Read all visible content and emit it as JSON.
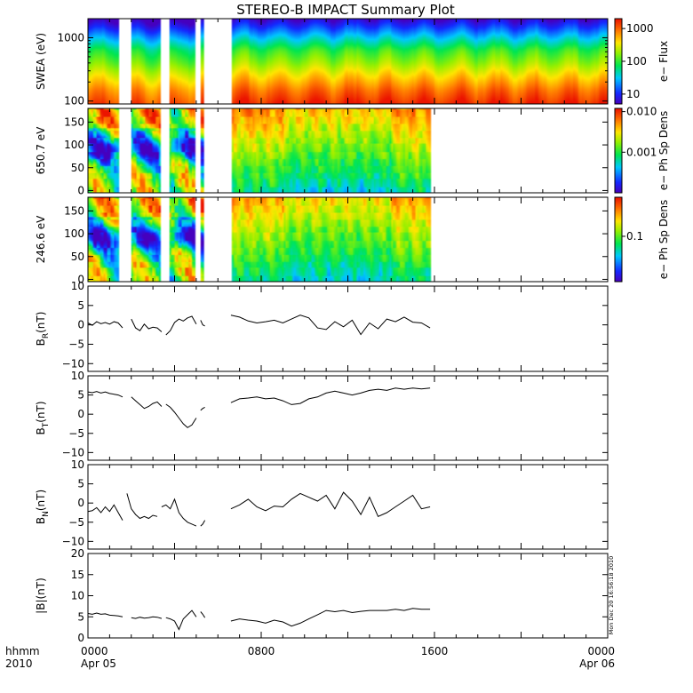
{
  "chart_data": {
    "type": "multi-panel time series with spectrograms",
    "title": "STEREO-B IMPACT Summary Plot",
    "stamp": "Mon Dec 20 16:56:18 2010",
    "time_axis": {
      "range_hours": [
        0,
        24
      ],
      "corner_labels": [
        "hhmm",
        "2010"
      ],
      "ticks": [
        {
          "hour": 0,
          "label": "0000",
          "sublabel": "Apr 05"
        },
        {
          "hour": 8,
          "label": "0800",
          "sublabel": ""
        },
        {
          "hour": 16,
          "label": "1600",
          "sublabel": ""
        },
        {
          "hour": 24,
          "label": "0000",
          "sublabel": "Apr 06"
        }
      ]
    },
    "coverage": {
      "swea_intervals": [
        [
          0,
          1.4
        ],
        [
          2.0,
          3.3
        ],
        [
          3.7,
          4.9
        ],
        [
          5.2,
          5.3
        ],
        [
          6.6,
          24
        ]
      ],
      "pad_intervals": [
        [
          0,
          1.4
        ],
        [
          2.0,
          3.3
        ],
        [
          3.7,
          4.9
        ],
        [
          5.2,
          5.3
        ],
        [
          6.6,
          15.8
        ]
      ],
      "mag_intervals": [
        [
          0,
          1.6
        ],
        [
          2.0,
          5.0
        ],
        [
          5.2,
          5.4
        ],
        [
          6.6,
          15.8
        ]
      ]
    },
    "panels": [
      {
        "id": "swea",
        "type": "heatmap",
        "ylabel": "SWEA (eV)",
        "yscale": "log",
        "ylim": [
          90,
          2000
        ],
        "yticks": [
          {
            "v": 100,
            "label": "100"
          },
          {
            "v": 1000,
            "label": "1000"
          }
        ],
        "colorbar": {
          "label": "e− Flux",
          "scale": "log",
          "range": [
            5,
            2000
          ],
          "ticks": [
            {
              "v": 10,
              "label": "10"
            },
            {
              "v": 100,
              "label": "100"
            },
            {
              "v": 1000,
              "label": "1000"
            }
          ]
        },
        "flux_profile": {
          "energy_eV": [
            90,
            150,
            250,
            400,
            650,
            1000,
            1500,
            2000
          ],
          "flux": [
            1800,
            1000,
            450,
            200,
            100,
            35,
            12,
            6
          ]
        }
      },
      {
        "id": "pad650",
        "type": "heatmap",
        "ylabel": "650.7 eV",
        "yscale": "linear",
        "ylim": [
          -5,
          180
        ],
        "yticks": [
          {
            "v": 0,
            "label": "0"
          },
          {
            "v": 50,
            "label": "50"
          },
          {
            "v": 100,
            "label": "100"
          },
          {
            "v": 150,
            "label": "150"
          }
        ],
        "colorbar": {
          "label": "e− Ph Sp Dens",
          "scale": "log",
          "range": [
            0.0001,
            0.012
          ],
          "ticks": [
            {
              "v": 0.001,
              "label": "0.001"
            },
            {
              "v": 0.01,
              "label": "0.010"
            }
          ]
        }
      },
      {
        "id": "pad246",
        "type": "heatmap",
        "ylabel": "246.6 eV",
        "yscale": "linear",
        "ylim": [
          -5,
          180
        ],
        "yticks": [
          {
            "v": 0,
            "label": "0"
          },
          {
            "v": 50,
            "label": "50"
          },
          {
            "v": 100,
            "label": "100"
          },
          {
            "v": 150,
            "label": "150"
          }
        ],
        "colorbar": {
          "label": "e− Ph Sp Dens",
          "scale": "log",
          "range": [
            0.02,
            0.4
          ],
          "ticks": [
            {
              "v": 0.1,
              "label": "0.1"
            }
          ]
        }
      },
      {
        "id": "br",
        "type": "line",
        "ylabel": "B",
        "ysub": "R",
        "yunit": "(nT)",
        "ylim": [
          -12,
          10
        ],
        "yticks": [
          {
            "v": -10,
            "label": "−10"
          },
          {
            "v": -5,
            "label": "−5"
          },
          {
            "v": 0,
            "label": "0"
          },
          {
            "v": 5,
            "label": "5"
          },
          {
            "v": 10,
            "label": "10"
          }
        ],
        "segments": [
          {
            "t": [
              0,
              0.2,
              0.4,
              0.6,
              0.8,
              1.0,
              1.2,
              1.4,
              1.6
            ],
            "v": [
              0.5,
              -0.1,
              0.8,
              0.3,
              0.6,
              0.2,
              0.8,
              0.5,
              -0.8
            ]
          },
          {
            "t": [
              2.0,
              2.2,
              2.4,
              2.6,
              2.8,
              3.0,
              3.2,
              3.4
            ],
            "v": [
              1.5,
              -0.8,
              -1.5,
              0.2,
              -1.0,
              -0.6,
              -0.8,
              -1.8
            ]
          },
          {
            "t": [
              3.6,
              3.8,
              4.0,
              4.2,
              4.4,
              4.6,
              4.8,
              5.0
            ],
            "v": [
              -2.6,
              -1.5,
              0.6,
              1.5,
              1.0,
              1.8,
              2.2,
              0.2
            ]
          },
          {
            "t": [
              5.2,
              5.3,
              5.4
            ],
            "v": [
              1.2,
              0.0,
              -0.3
            ]
          },
          {
            "t": [
              6.6,
              7.0,
              7.4,
              7.8,
              8.2,
              8.6,
              9.0,
              9.4,
              9.8,
              10.2,
              10.6,
              11.0,
              11.4,
              11.8,
              12.2,
              12.6,
              13.0,
              13.4,
              13.8,
              14.2,
              14.6,
              15.0,
              15.4,
              15.8
            ],
            "v": [
              2.5,
              2.0,
              1.0,
              0.5,
              0.8,
              1.2,
              0.5,
              1.5,
              2.5,
              1.8,
              -0.8,
              -1.2,
              0.8,
              -0.5,
              1.2,
              -2.5,
              0.5,
              -1.0,
              1.5,
              0.8,
              2.0,
              0.7,
              0.5,
              -0.8
            ]
          }
        ]
      },
      {
        "id": "bt",
        "type": "line",
        "ylabel": "B",
        "ysub": "T",
        "yunit": "(nT)",
        "ylim": [
          -12,
          10
        ],
        "yticks": [
          {
            "v": -10,
            "label": "−10"
          },
          {
            "v": -5,
            "label": "−5"
          },
          {
            "v": 0,
            "label": "0"
          },
          {
            "v": 5,
            "label": "5"
          },
          {
            "v": 10,
            "label": "10"
          }
        ],
        "segments": [
          {
            "t": [
              0,
              0.2,
              0.4,
              0.6,
              0.8,
              1.0,
              1.2,
              1.4,
              1.6
            ],
            "v": [
              5.8,
              5.6,
              5.9,
              5.5,
              5.8,
              5.4,
              5.2,
              5.0,
              4.5
            ]
          },
          {
            "t": [
              2.0,
              2.2,
              2.4,
              2.6,
              2.8,
              3.0,
              3.2,
              3.4
            ],
            "v": [
              4.5,
              3.5,
              2.5,
              1.5,
              2.0,
              2.8,
              3.2,
              2.0
            ]
          },
          {
            "t": [
              3.6,
              3.8,
              4.0,
              4.2,
              4.4,
              4.6,
              4.8,
              5.0
            ],
            "v": [
              2.6,
              1.8,
              0.5,
              -1.0,
              -2.5,
              -3.5,
              -2.8,
              -1.0
            ]
          },
          {
            "t": [
              5.2,
              5.3,
              5.4
            ],
            "v": [
              1.0,
              1.5,
              1.8
            ]
          },
          {
            "t": [
              6.6,
              7.0,
              7.4,
              7.8,
              8.2,
              8.6,
              9.0,
              9.4,
              9.8,
              10.2,
              10.6,
              11.0,
              11.4,
              11.8,
              12.2,
              12.6,
              13.0,
              13.4,
              13.8,
              14.2,
              14.6,
              15.0,
              15.4,
              15.8
            ],
            "v": [
              3.0,
              4.0,
              4.2,
              4.5,
              4.0,
              4.2,
              3.5,
              2.5,
              2.8,
              4.0,
              4.5,
              5.5,
              6.0,
              5.5,
              5.0,
              5.5,
              6.2,
              6.5,
              6.2,
              6.8,
              6.5,
              6.8,
              6.6,
              6.8
            ]
          }
        ]
      },
      {
        "id": "bn",
        "type": "line",
        "ylabel": "B",
        "ysub": "N",
        "yunit": "(nT)",
        "ylim": [
          -12,
          10
        ],
        "yticks": [
          {
            "v": -10,
            "label": "−10"
          },
          {
            "v": -5,
            "label": "−5"
          },
          {
            "v": 0,
            "label": "0"
          },
          {
            "v": 5,
            "label": "5"
          },
          {
            "v": 10,
            "label": "10"
          }
        ],
        "segments": [
          {
            "t": [
              0,
              0.2,
              0.4,
              0.6,
              0.8,
              1.0,
              1.2,
              1.4,
              1.6
            ],
            "v": [
              -2.2,
              -2.0,
              -1.2,
              -2.5,
              -1.0,
              -2.2,
              -0.5,
              -2.5,
              -4.5
            ]
          },
          {
            "t": [
              1.8,
              2.0,
              2.2,
              2.4,
              2.6,
              2.8,
              3.0,
              3.2
            ],
            "v": [
              2.5,
              -1.5,
              -3.0,
              -4.0,
              -3.5,
              -4.0,
              -3.2,
              -3.5
            ]
          },
          {
            "t": [
              3.4,
              3.6,
              3.8,
              4.0,
              4.2,
              4.4,
              4.6,
              4.8,
              5.0
            ],
            "v": [
              -1.0,
              -0.5,
              -1.5,
              1.0,
              -2.5,
              -4.0,
              -5.0,
              -5.5,
              -6.0
            ]
          },
          {
            "t": [
              5.2,
              5.3,
              5.4
            ],
            "v": [
              -6.0,
              -5.5,
              -4.5
            ]
          },
          {
            "t": [
              6.6,
              7.0,
              7.4,
              7.8,
              8.2,
              8.6,
              9.0,
              9.4,
              9.8,
              10.2,
              10.6,
              11.0,
              11.4,
              11.8,
              12.2,
              12.6,
              13.0,
              13.4,
              13.8,
              14.2,
              14.6,
              15.0,
              15.4,
              15.8
            ],
            "v": [
              -1.5,
              -0.5,
              1.0,
              -1.0,
              -2.0,
              -0.8,
              -1.0,
              1.0,
              2.5,
              1.5,
              0.5,
              2.0,
              -1.5,
              2.8,
              0.5,
              -3.0,
              1.5,
              -3.5,
              -2.5,
              -1.0,
              0.5,
              2.0,
              -1.5,
              -1.0
            ]
          }
        ]
      },
      {
        "id": "bmag",
        "type": "line",
        "ylabel": "|B|",
        "ysub": "",
        "yunit": "(nT)",
        "ylim": [
          0,
          20
        ],
        "yticks": [
          {
            "v": 0,
            "label": "0"
          },
          {
            "v": 5,
            "label": "5"
          },
          {
            "v": 10,
            "label": "10"
          },
          {
            "v": 15,
            "label": "15"
          },
          {
            "v": 20,
            "label": "20"
          }
        ],
        "segments": [
          {
            "t": [
              0,
              0.2,
              0.4,
              0.6,
              0.8,
              1.0,
              1.2,
              1.4,
              1.6
            ],
            "v": [
              5.8,
              5.6,
              5.9,
              5.6,
              5.7,
              5.4,
              5.3,
              5.2,
              5.0
            ]
          },
          {
            "t": [
              2.0,
              2.2,
              2.4,
              2.6,
              2.8,
              3.0,
              3.2,
              3.4
            ],
            "v": [
              4.8,
              4.6,
              4.9,
              4.7,
              4.8,
              5.0,
              4.9,
              4.6
            ]
          },
          {
            "t": [
              3.6,
              3.8,
              4.0,
              4.2,
              4.4,
              4.6,
              4.8,
              5.0
            ],
            "v": [
              4.8,
              4.5,
              4.0,
              2.0,
              4.5,
              5.5,
              6.5,
              5.0
            ]
          },
          {
            "t": [
              5.2,
              5.3,
              5.4
            ],
            "v": [
              6.2,
              5.6,
              4.8
            ]
          },
          {
            "t": [
              6.6,
              7.0,
              7.4,
              7.8,
              8.2,
              8.6,
              9.0,
              9.4,
              9.8,
              10.2,
              10.6,
              11.0,
              11.4,
              11.8,
              12.2,
              12.6,
              13.0,
              13.4,
              13.8,
              14.2,
              14.6,
              15.0,
              15.4,
              15.8
            ],
            "v": [
              4.0,
              4.5,
              4.2,
              4.0,
              3.5,
              4.2,
              3.8,
              2.8,
              3.5,
              4.5,
              5.5,
              6.5,
              6.2,
              6.5,
              6.0,
              6.3,
              6.5,
              6.5,
              6.5,
              6.8,
              6.5,
              7.0,
              6.8,
              6.8
            ]
          }
        ]
      }
    ]
  }
}
